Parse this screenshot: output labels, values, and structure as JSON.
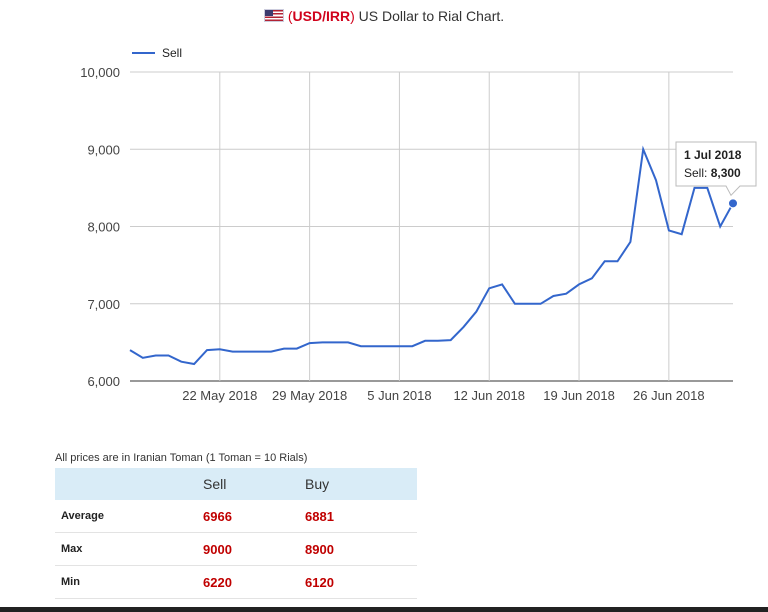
{
  "title": {
    "open_paren": "(",
    "pair": "USD/IRR",
    "close_paren": ")",
    "text": " US Dollar to Rial Chart."
  },
  "chart_data": {
    "type": "line",
    "x": [
      "15 May 2018",
      "16 May 2018",
      "17 May 2018",
      "18 May 2018",
      "19 May 2018",
      "20 May 2018",
      "21 May 2018",
      "22 May 2018",
      "23 May 2018",
      "24 May 2018",
      "25 May 2018",
      "26 May 2018",
      "27 May 2018",
      "28 May 2018",
      "29 May 2018",
      "30 May 2018",
      "31 May 2018",
      "1 Jun 2018",
      "2 Jun 2018",
      "3 Jun 2018",
      "4 Jun 2018",
      "5 Jun 2018",
      "6 Jun 2018",
      "7 Jun 2018",
      "8 Jun 2018",
      "9 Jun 2018",
      "10 Jun 2018",
      "11 Jun 2018",
      "12 Jun 2018",
      "13 Jun 2018",
      "14 Jun 2018",
      "15 Jun 2018",
      "16 Jun 2018",
      "17 Jun 2018",
      "18 Jun 2018",
      "19 Jun 2018",
      "20 Jun 2018",
      "21 Jun 2018",
      "22 Jun 2018",
      "23 Jun 2018",
      "24 Jun 2018",
      "25 Jun 2018",
      "26 Jun 2018",
      "27 Jun 2018",
      "28 Jun 2018",
      "29 Jun 2018",
      "30 Jun 2018",
      "1 Jul 2018"
    ],
    "series": [
      {
        "name": "Sell",
        "color": "#3366cc",
        "values": [
          6400,
          6300,
          6330,
          6330,
          6250,
          6220,
          6400,
          6410,
          6380,
          6380,
          6380,
          6380,
          6420,
          6420,
          6490,
          6500,
          6500,
          6500,
          6450,
          6450,
          6450,
          6450,
          6450,
          6520,
          6520,
          6530,
          6700,
          6900,
          7200,
          7250,
          7000,
          7000,
          7000,
          7100,
          7130,
          7250,
          7330,
          7550,
          7550,
          7800,
          9000,
          8600,
          7950,
          7900,
          8500,
          8500,
          8000,
          8300
        ]
      }
    ],
    "ylim": [
      6000,
      10000
    ],
    "y_ticks": [
      "6,000",
      "7,000",
      "8,000",
      "9,000",
      "10,000"
    ],
    "y_tick_values": [
      6000,
      7000,
      8000,
      9000,
      10000
    ],
    "x_tick_labels": [
      "22 May 2018",
      "29 May 2018",
      "5 Jun 2018",
      "12 Jun 2018",
      "19 Jun 2018",
      "26 Jun 2018"
    ],
    "x_tick_index": [
      7,
      14,
      21,
      28,
      35,
      42
    ],
    "legend": {
      "position": "top-left"
    },
    "grid": true,
    "tooltip": {
      "date": "1 Jul 2018",
      "label": "Sell: ",
      "value": "8,300",
      "point_index": 47
    }
  },
  "stats": {
    "note": "All prices are in Iranian Toman (1 Toman = 10 Rials)",
    "headers": [
      "",
      "Sell",
      "Buy"
    ],
    "rows": [
      {
        "label": "Average",
        "sell": "6966",
        "buy": "6881"
      },
      {
        "label": "Max",
        "sell": "9000",
        "buy": "8900"
      },
      {
        "label": "Min",
        "sell": "6220",
        "buy": "6120"
      }
    ]
  }
}
